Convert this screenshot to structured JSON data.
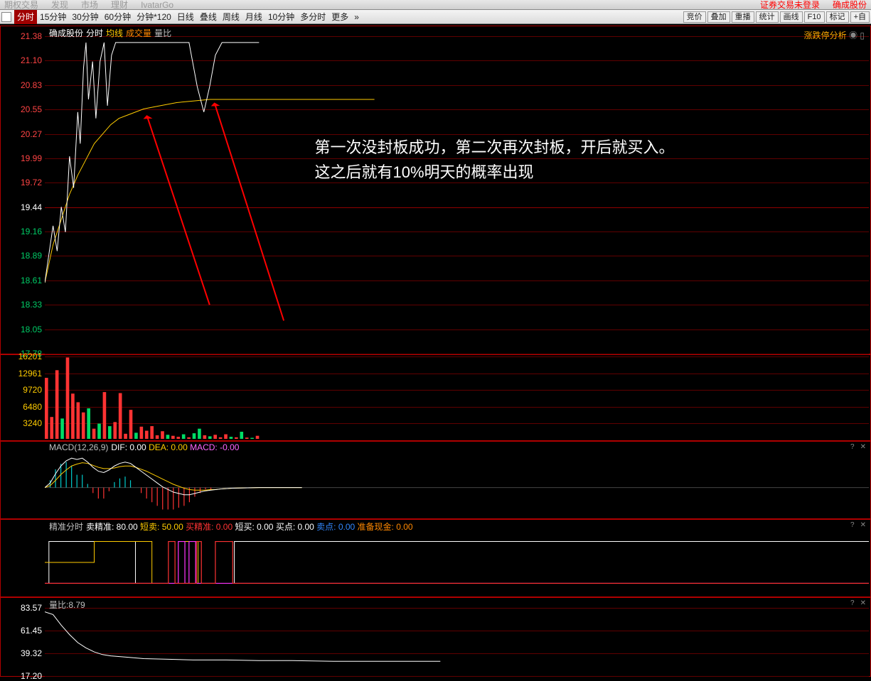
{
  "app_header": {
    "items": [
      "期权交易",
      "发现",
      "市场",
      "理财",
      "IvatarGo"
    ],
    "right_warning": "证券交易未登录",
    "right_stock": "确成股份"
  },
  "menu_strip": {
    "timeframes": [
      "分时",
      "15分钟",
      "30分钟",
      "60分钟",
      "分钟*120",
      "日线",
      "叠线",
      "周线",
      "月线",
      "10分钟",
      "多分时",
      "更多"
    ],
    "active_index": 0,
    "extra_glyph": "»",
    "right_tools": [
      "竞价",
      "叠加",
      "重播",
      "统计",
      "画线",
      "F10",
      "标记",
      "+自"
    ]
  },
  "price_chart": {
    "top_right_link": "涨跌停分析",
    "top_right_icons": [
      "◉",
      "▯"
    ],
    "legend": {
      "stock_name": "确成股份",
      "items": [
        {
          "label": "分时",
          "color": "#ffffff"
        },
        {
          "label": "均线",
          "color": "#ffcc00"
        },
        {
          "label": "成交量",
          "color": "#ff8800"
        },
        {
          "label": "量比",
          "color": "#c0c0c0"
        }
      ]
    },
    "y_axis": {
      "ticks": [
        21.38,
        21.1,
        20.83,
        20.55,
        20.27,
        19.99,
        19.72,
        19.44,
        19.16,
        18.89,
        18.61,
        18.33,
        18.05,
        17.78
      ],
      "color_high": "#ff4444",
      "color_mid": "#ffffff",
      "color_low": "#00cc66",
      "mid_index": 7
    },
    "ylim": [
      17.78,
      21.38
    ],
    "price_line": {
      "color": "#ffffff",
      "width": 1,
      "points_pct": [
        [
          0,
          78
        ],
        [
          1,
          60
        ],
        [
          1.5,
          68
        ],
        [
          2,
          54
        ],
        [
          2.5,
          62
        ],
        [
          3,
          38
        ],
        [
          3.5,
          48
        ],
        [
          4,
          24
        ],
        [
          4.3,
          34
        ],
        [
          4.7,
          10
        ],
        [
          5,
          2
        ],
        [
          5.3,
          20
        ],
        [
          5.8,
          8
        ],
        [
          6.2,
          26
        ],
        [
          6.7,
          8
        ],
        [
          7.2,
          2
        ],
        [
          7.6,
          22
        ],
        [
          8.1,
          6
        ],
        [
          8.6,
          2
        ],
        [
          9.5,
          2
        ],
        [
          10.5,
          2
        ],
        [
          11.5,
          2
        ],
        [
          15,
          2
        ],
        [
          16,
          2
        ],
        [
          17.5,
          2
        ],
        [
          18.5,
          16
        ],
        [
          19.3,
          24
        ],
        [
          20,
          16
        ],
        [
          20.7,
          6
        ],
        [
          21.5,
          2
        ],
        [
          23,
          2
        ],
        [
          24.5,
          2
        ],
        [
          26,
          2
        ]
      ]
    },
    "avg_line": {
      "color": "#ffcc00",
      "width": 1,
      "points_pct": [
        [
          0,
          78
        ],
        [
          1,
          66
        ],
        [
          2,
          58
        ],
        [
          3,
          50
        ],
        [
          4,
          44
        ],
        [
          5,
          39
        ],
        [
          6,
          34
        ],
        [
          7,
          31
        ],
        [
          8,
          28
        ],
        [
          9,
          26
        ],
        [
          10,
          25
        ],
        [
          12,
          23
        ],
        [
          14,
          22
        ],
        [
          16,
          21
        ],
        [
          18,
          20.5
        ],
        [
          20,
          20
        ],
        [
          22,
          20
        ],
        [
          24,
          20
        ],
        [
          26,
          20
        ],
        [
          28,
          20
        ],
        [
          30,
          20
        ],
        [
          33,
          20
        ],
        [
          40,
          20
        ]
      ]
    },
    "arrows": {
      "color": "#ff0000",
      "a1": {
        "tail": [
          20,
          85
        ],
        "head": [
          12.5,
          26
        ]
      },
      "a2": {
        "tail": [
          29,
          90
        ],
        "head": [
          20.7,
          22
        ]
      }
    },
    "annotation": {
      "line1": "第一次没封板成功，第二次再次封板，开后就买入。",
      "line2": "这之后就有10%明天的概率出现",
      "pos_pct": [
        33,
        31
      ]
    }
  },
  "volume_panel": {
    "y_axis": {
      "ticks": [
        16201,
        12961,
        9720,
        6480,
        3240
      ],
      "color": "#ffcc00"
    },
    "ylim": [
      0,
      16201
    ],
    "bars": [
      [
        0,
        12000,
        "r"
      ],
      [
        1,
        4300,
        "r"
      ],
      [
        2,
        13500,
        "r"
      ],
      [
        3,
        4000,
        "g"
      ],
      [
        4,
        16000,
        "r"
      ],
      [
        5,
        8900,
        "r"
      ],
      [
        6,
        7200,
        "r"
      ],
      [
        7,
        5200,
        "r"
      ],
      [
        8,
        6000,
        "g"
      ],
      [
        9,
        2000,
        "r"
      ],
      [
        10,
        3000,
        "g"
      ],
      [
        11,
        9200,
        "r"
      ],
      [
        12,
        2500,
        "g"
      ],
      [
        13,
        3300,
        "r"
      ],
      [
        14,
        9000,
        "r"
      ],
      [
        15,
        1000,
        "r"
      ],
      [
        16,
        5700,
        "r"
      ],
      [
        17,
        1200,
        "g"
      ],
      [
        18,
        2400,
        "r"
      ],
      [
        19,
        1600,
        "r"
      ],
      [
        20,
        2500,
        "r"
      ],
      [
        21,
        700,
        "r"
      ],
      [
        22,
        1500,
        "r"
      ],
      [
        23,
        800,
        "g"
      ],
      [
        24,
        600,
        "r"
      ],
      [
        25,
        400,
        "r"
      ],
      [
        26,
        900,
        "g"
      ],
      [
        27,
        300,
        "r"
      ],
      [
        28,
        1100,
        "g"
      ],
      [
        29,
        2000,
        "g"
      ],
      [
        30,
        700,
        "r"
      ],
      [
        31,
        500,
        "g"
      ],
      [
        32,
        800,
        "r"
      ],
      [
        33,
        300,
        "r"
      ],
      [
        34,
        900,
        "r"
      ],
      [
        35,
        400,
        "g"
      ],
      [
        36,
        300,
        "r"
      ],
      [
        37,
        1400,
        "g"
      ],
      [
        38,
        250,
        "r"
      ],
      [
        39,
        200,
        "g"
      ],
      [
        40,
        600,
        "r"
      ]
    ],
    "colors": {
      "r": "#ff3333",
      "g": "#00dd66"
    },
    "bar_width_pct": 0.4
  },
  "macd_panel": {
    "label": "MACD(12,26,9)",
    "items": [
      {
        "label": "DIF:",
        "value": "0.00",
        "color": "#ffffff"
      },
      {
        "label": "DEA:",
        "value": "0.00",
        "color": "#ffcc00"
      },
      {
        "label": "MACD:",
        "value": "-0.00",
        "color": "#ff66ff"
      }
    ],
    "zero": 55,
    "dif_points_pct": [
      [
        0,
        55
      ],
      [
        1,
        48
      ],
      [
        2,
        34
      ],
      [
        3,
        22
      ],
      [
        4,
        14
      ],
      [
        5,
        10
      ],
      [
        6,
        12
      ],
      [
        7,
        10
      ],
      [
        8,
        16
      ],
      [
        9,
        24
      ],
      [
        10,
        30
      ],
      [
        11,
        32
      ],
      [
        12,
        28
      ],
      [
        13,
        22
      ],
      [
        14,
        18
      ],
      [
        15,
        16
      ],
      [
        16,
        18
      ],
      [
        17,
        24
      ],
      [
        18,
        30
      ],
      [
        19,
        36
      ],
      [
        20,
        42
      ],
      [
        21,
        48
      ],
      [
        22,
        54
      ],
      [
        23,
        58
      ],
      [
        24,
        62
      ],
      [
        25,
        64
      ],
      [
        26,
        66
      ],
      [
        27,
        66
      ],
      [
        28,
        64
      ],
      [
        29,
        62
      ],
      [
        30,
        60
      ],
      [
        31,
        59
      ],
      [
        32,
        58
      ],
      [
        33,
        57
      ],
      [
        35,
        56
      ],
      [
        40,
        55
      ],
      [
        48,
        55
      ]
    ],
    "dea_points_pct": [
      [
        0,
        55
      ],
      [
        1,
        52
      ],
      [
        2,
        44
      ],
      [
        3,
        35
      ],
      [
        4,
        28
      ],
      [
        5,
        22
      ],
      [
        6,
        19
      ],
      [
        7,
        17
      ],
      [
        8,
        18
      ],
      [
        9,
        21
      ],
      [
        10,
        24
      ],
      [
        11,
        26
      ],
      [
        12,
        26
      ],
      [
        13,
        25
      ],
      [
        14,
        23
      ],
      [
        15,
        22
      ],
      [
        16,
        22
      ],
      [
        17,
        24
      ],
      [
        18,
        27
      ],
      [
        19,
        30
      ],
      [
        20,
        34
      ],
      [
        21,
        38
      ],
      [
        22,
        42
      ],
      [
        23,
        46
      ],
      [
        24,
        50
      ],
      [
        25,
        53
      ],
      [
        26,
        56
      ],
      [
        27,
        58
      ],
      [
        28,
        59
      ],
      [
        29,
        59
      ],
      [
        30,
        59
      ],
      [
        31,
        58
      ],
      [
        32,
        58
      ],
      [
        33,
        57
      ],
      [
        35,
        56
      ],
      [
        40,
        55
      ],
      [
        48,
        55
      ]
    ],
    "bars": [
      [
        0,
        0
      ],
      [
        1,
        -4
      ],
      [
        2,
        -10
      ],
      [
        3,
        -13
      ],
      [
        4,
        -14
      ],
      [
        5,
        -12
      ],
      [
        6,
        -7
      ],
      [
        7,
        -7
      ],
      [
        8,
        -2
      ],
      [
        9,
        3
      ],
      [
        10,
        6
      ],
      [
        11,
        6
      ],
      [
        12,
        2
      ],
      [
        13,
        -3
      ],
      [
        14,
        -5
      ],
      [
        15,
        -6
      ],
      [
        16,
        -4
      ],
      [
        17,
        0
      ],
      [
        18,
        3
      ],
      [
        19,
        6
      ],
      [
        20,
        8
      ],
      [
        21,
        10
      ],
      [
        22,
        12
      ],
      [
        23,
        12
      ],
      [
        24,
        12
      ],
      [
        25,
        11
      ],
      [
        26,
        10
      ],
      [
        27,
        8
      ],
      [
        28,
        5
      ],
      [
        29,
        3
      ],
      [
        30,
        1
      ],
      [
        31,
        1
      ],
      [
        32,
        0
      ],
      [
        33,
        0
      ]
    ]
  },
  "precision_panel": {
    "label": "精准分时",
    "items": [
      {
        "label": "卖精准:",
        "value": "80.00",
        "color": "#ffffff"
      },
      {
        "label": "短卖:",
        "value": "50.00",
        "color": "#ffcc00"
      },
      {
        "label": "买精准:",
        "value": "0.00",
        "color": "#ff3333"
      },
      {
        "label": "短买:",
        "value": "0.00",
        "color": "#ffffff"
      },
      {
        "label": "买点:",
        "value": "0.00",
        "color": "#ffffff"
      },
      {
        "label": "卖点:",
        "value": "0.00",
        "color": "#3388ff"
      },
      {
        "label": "准备现金:",
        "value": "0.00",
        "color": "#ff8800"
      }
    ],
    "white_line": [
      [
        0,
        82
      ],
      [
        0.5,
        82
      ],
      [
        0.5,
        18
      ],
      [
        11,
        18
      ],
      [
        11,
        82
      ],
      [
        23,
        82
      ],
      [
        23,
        18
      ],
      [
        100,
        18
      ]
    ],
    "yellow_line": [
      [
        0,
        50
      ],
      [
        6,
        50
      ],
      [
        6,
        18
      ],
      [
        13,
        18
      ],
      [
        13,
        82
      ],
      [
        17,
        82
      ],
      [
        17,
        18
      ],
      [
        18.6,
        18
      ],
      [
        18.6,
        82
      ],
      [
        100,
        82
      ]
    ],
    "red_line": [
      [
        0,
        82
      ],
      [
        15,
        82
      ],
      [
        15,
        18
      ],
      [
        15.8,
        18
      ],
      [
        15.8,
        82
      ],
      [
        18.4,
        82
      ],
      [
        18.4,
        18
      ],
      [
        19,
        18
      ],
      [
        19,
        82
      ],
      [
        20.7,
        82
      ],
      [
        20.7,
        18
      ],
      [
        22.8,
        18
      ],
      [
        22.8,
        82
      ],
      [
        100,
        82
      ]
    ],
    "magenta_line": [
      [
        0,
        82
      ],
      [
        16.2,
        82
      ],
      [
        16.2,
        18
      ],
      [
        17,
        18
      ],
      [
        17,
        82
      ],
      [
        17.5,
        82
      ],
      [
        17.5,
        18
      ],
      [
        18.3,
        18
      ],
      [
        18.3,
        82
      ],
      [
        100,
        82
      ]
    ]
  },
  "ratio_panel": {
    "label": "量比:8.79",
    "y_axis": {
      "ticks": [
        83.57,
        61.45,
        39.32,
        17.2
      ],
      "color": "#ffffff"
    },
    "ylim": [
      10,
      85
    ],
    "line_points_pct": [
      [
        0,
        6
      ],
      [
        1,
        10
      ],
      [
        2,
        26
      ],
      [
        3,
        40
      ],
      [
        4,
        52
      ],
      [
        5,
        60
      ],
      [
        6,
        66
      ],
      [
        7,
        70
      ],
      [
        8,
        72
      ],
      [
        10,
        74
      ],
      [
        12,
        76
      ],
      [
        15,
        77
      ],
      [
        18,
        78
      ],
      [
        22,
        78
      ],
      [
        26,
        79
      ],
      [
        30,
        79
      ],
      [
        35,
        80
      ],
      [
        40,
        80
      ],
      [
        48,
        80
      ]
    ]
  },
  "colors": {
    "grid": "#600000",
    "grid_bold": "#900000",
    "border": "#b00000",
    "bg": "#000000"
  }
}
